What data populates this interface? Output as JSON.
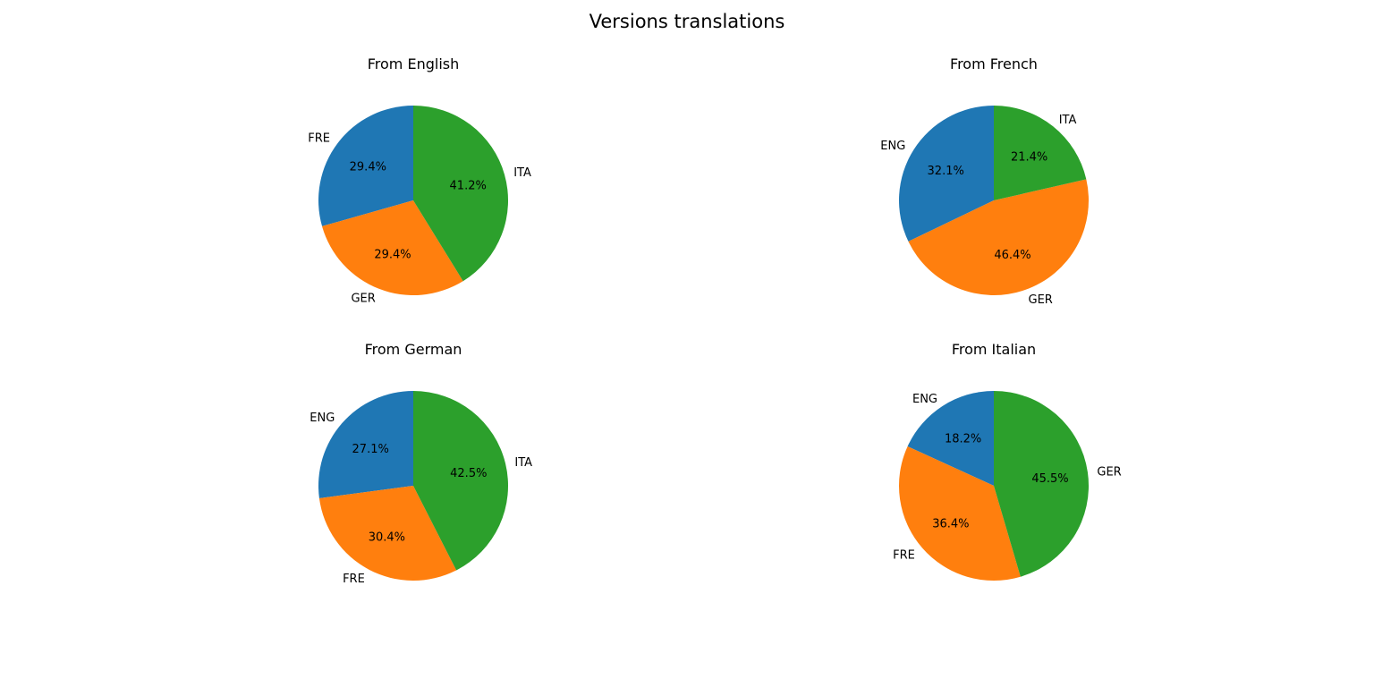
{
  "title": "Versions translations",
  "colors": [
    "#1f77b4",
    "#ff7f0e",
    "#2ca02c"
  ],
  "chart_data": [
    {
      "type": "pie",
      "title": "From English",
      "labels": [
        "FRE",
        "GER",
        "ITA"
      ],
      "values": [
        29.4,
        29.4,
        41.2
      ],
      "value_labels": [
        "29.4%",
        "29.4%",
        "41.2%"
      ],
      "start_angle_deg": 90,
      "direction": "counterclockwise"
    },
    {
      "type": "pie",
      "title": "From French",
      "labels": [
        "ENG",
        "GER",
        "ITA"
      ],
      "values": [
        32.1,
        46.4,
        21.4
      ],
      "value_labels": [
        "32.1%",
        "46.4%",
        "21.4%"
      ],
      "start_angle_deg": 90,
      "direction": "counterclockwise"
    },
    {
      "type": "pie",
      "title": "From German",
      "labels": [
        "ENG",
        "FRE",
        "ITA"
      ],
      "values": [
        27.1,
        30.4,
        42.5
      ],
      "value_labels": [
        "27.1%",
        "30.4%",
        "42.5%"
      ],
      "start_angle_deg": 90,
      "direction": "counterclockwise"
    },
    {
      "type": "pie",
      "title": "From Italian",
      "labels": [
        "ENG",
        "FRE",
        "GER"
      ],
      "values": [
        18.2,
        36.4,
        45.5
      ],
      "value_labels": [
        "18.2%",
        "36.4%",
        "45.5%"
      ],
      "start_angle_deg": 90,
      "direction": "counterclockwise"
    }
  ]
}
